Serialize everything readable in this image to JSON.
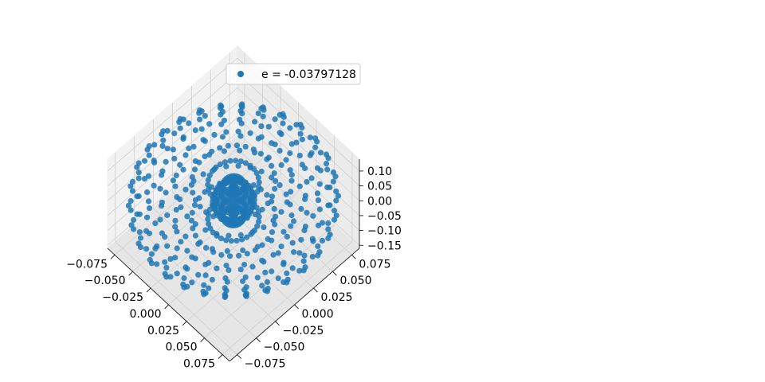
{
  "chart_data": {
    "type": "scatter",
    "projection": "3d",
    "title": "",
    "xlabel": "",
    "ylabel": "",
    "zlabel": "",
    "grid": true,
    "legend_placement": "upper-center",
    "marker_color": "#1f77b4",
    "pane_color": "#f2f2f2",
    "xlim": [
      -0.085,
      0.085
    ],
    "ylim": [
      -0.085,
      0.085
    ],
    "zlim": [
      -0.16,
      0.14
    ],
    "x_ticks": [
      -0.075,
      -0.05,
      -0.025,
      0.0,
      0.025,
      0.05,
      0.075
    ],
    "x_tick_labels": [
      "−0.075",
      "−0.050",
      "−0.025",
      "0.000",
      "0.025",
      "0.050",
      "0.075"
    ],
    "y_ticks": [
      -0.075,
      -0.05,
      -0.025,
      0.0,
      0.025,
      0.05,
      0.075
    ],
    "y_tick_labels": [
      "−0.075",
      "−0.050",
      "−0.025",
      "0.000",
      "0.025",
      "0.050",
      "0.075"
    ],
    "z_ticks": [
      0.1,
      0.05,
      0.0,
      -0.05,
      -0.1,
      -0.15
    ],
    "z_tick_labels": [
      "0.10",
      "0.05",
      "0.00",
      "−0.05",
      "−0.10",
      "−0.15"
    ],
    "series": [
      {
        "name": "e = -0.03797128",
        "shape": "torus",
        "major_radius": 0.04,
        "minor_radius": 0.06,
        "z_scale": 2.0,
        "theta_samples": 30,
        "phi_samples": 24,
        "color": "#1f77b4"
      }
    ]
  }
}
